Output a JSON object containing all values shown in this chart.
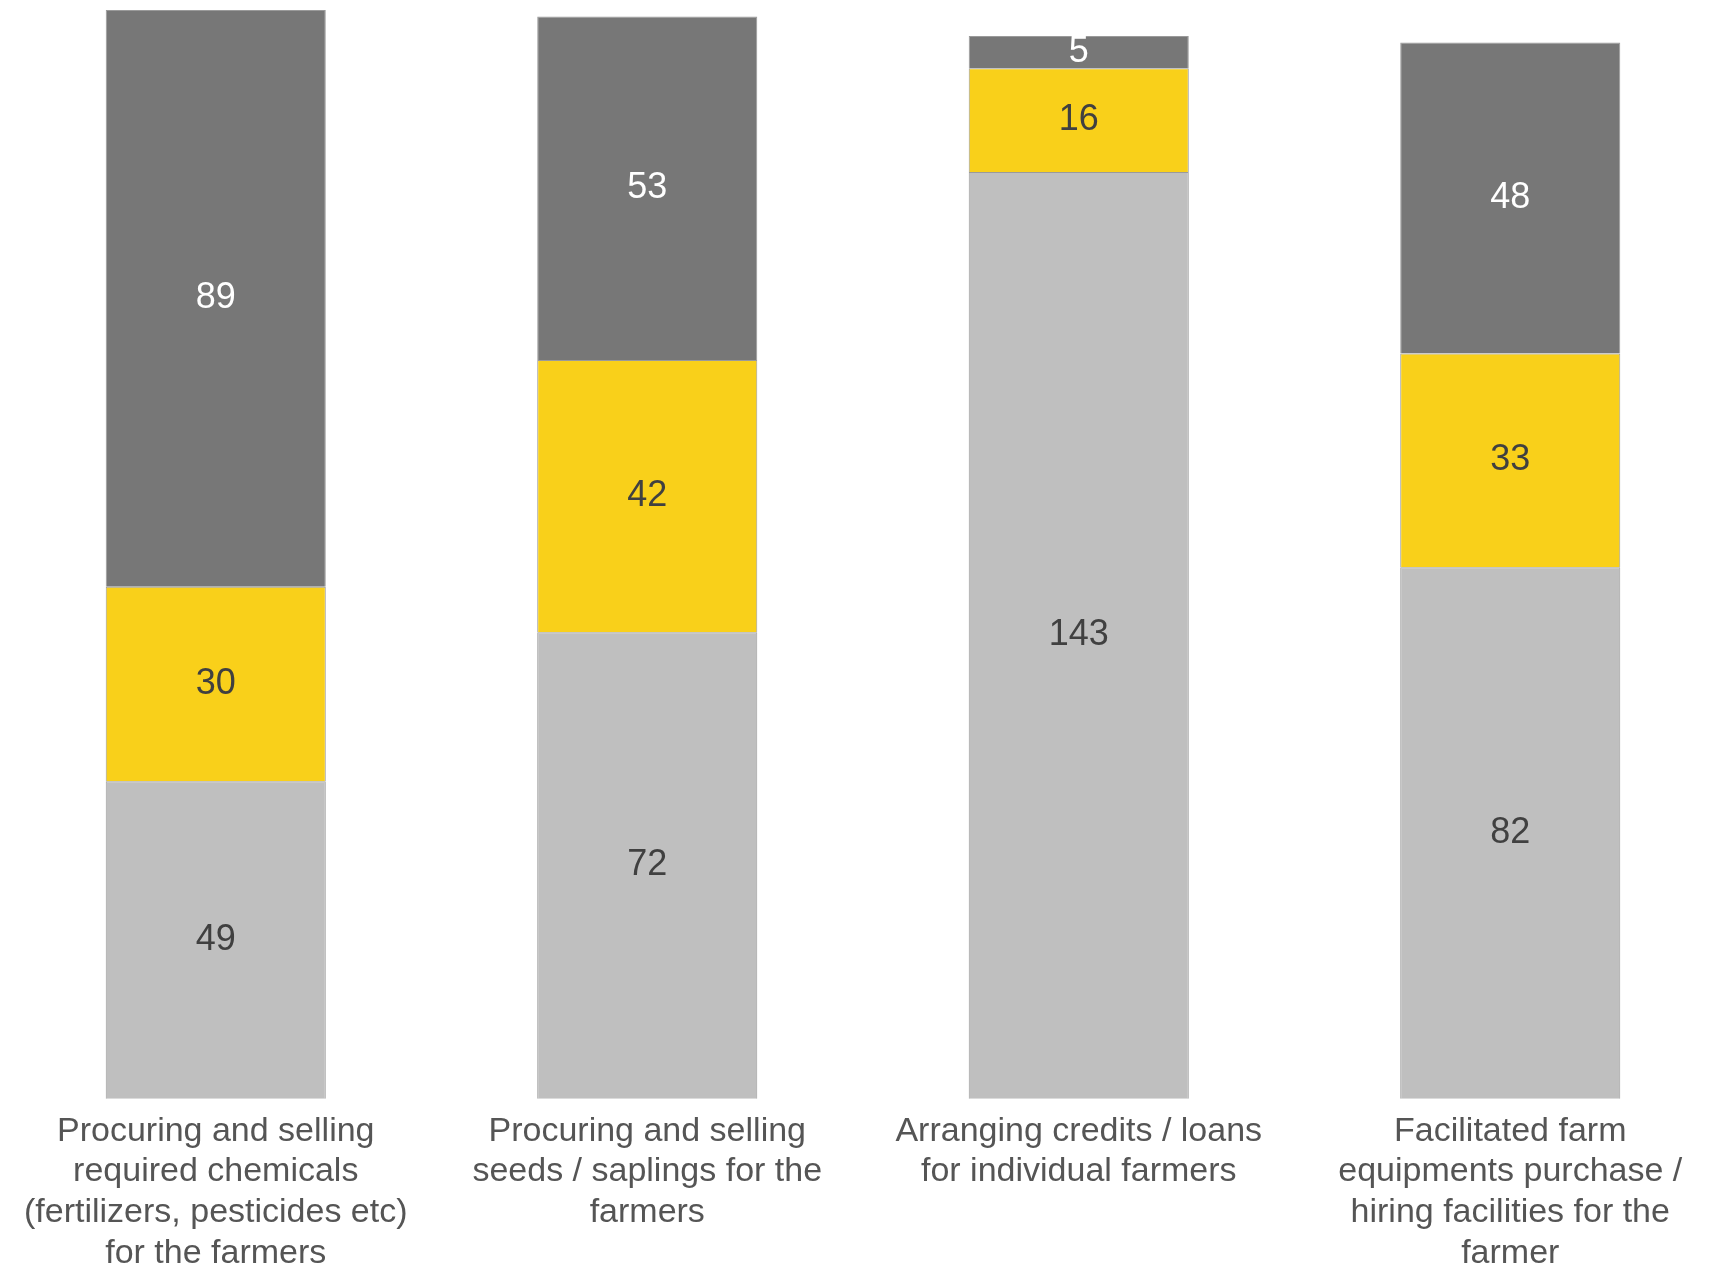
{
  "chart_data": {
    "type": "bar",
    "stacked": true,
    "data_labels": true,
    "categories": [
      "Procuring and selling required chemicals (fertilizers, pesticides etc) for the farmers",
      "Procuring and selling seeds / saplings for the farmers",
      "Arranging credits / loans for individual farmers",
      "Facilitated farm equipments purchase / hiring facilities for the farmer"
    ],
    "series": [
      {
        "color": "#bfbfbf",
        "values": [
          49,
          72,
          143,
          82
        ]
      },
      {
        "color": "#f9d01a",
        "values": [
          30,
          42,
          16,
          33
        ]
      },
      {
        "color": "#777777",
        "values": [
          89,
          53,
          5,
          48
        ]
      }
    ]
  }
}
